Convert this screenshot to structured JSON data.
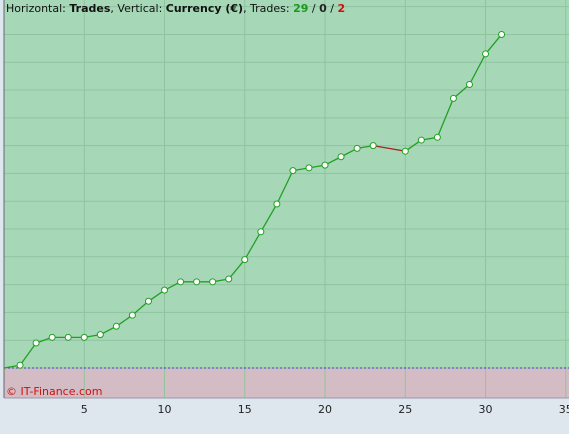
{
  "chart_data": {
    "type": "line",
    "header": [
      {
        "text": "Horizontal: "
      },
      {
        "text": "Trades",
        "bold": true
      },
      {
        "text": ", Vertical: "
      },
      {
        "text": "Currency (€)",
        "bold": true
      },
      {
        "text": ", Trades: "
      },
      {
        "text": "29",
        "bold": true,
        "color": "#1a9a1a"
      },
      {
        "text": " / "
      },
      {
        "text": "0",
        "bold": true,
        "color": "#222222"
      },
      {
        "text": " / "
      },
      {
        "text": "2",
        "bold": true,
        "color": "#cc1111"
      }
    ],
    "credit": "© IT-Finance.com",
    "x": [
      0,
      1,
      2,
      3,
      4,
      5,
      6,
      7,
      8,
      9,
      10,
      11,
      12,
      13,
      14,
      15,
      16,
      17,
      18,
      19,
      20,
      21,
      22,
      23,
      25,
      26,
      27,
      28,
      29,
      30,
      31
    ],
    "series": [
      {
        "color": "#22a022",
        "loss_color": "#aa2222",
        "values": [
          0,
          0.1,
          0.9,
          1.1,
          1.1,
          1.1,
          1.2,
          1.5,
          1.9,
          2.4,
          2.8,
          3.1,
          3.1,
          3.1,
          3.2,
          3.9,
          4.9,
          5.9,
          7.1,
          7.2,
          7.3,
          7.6,
          7.9,
          8.0,
          7.8,
          8.2,
          8.3,
          9.7,
          10.2,
          11.3,
          12.0
        ]
      }
    ],
    "xlim": [
      0,
      35.2
    ],
    "xticks": [
      5,
      10,
      15,
      20,
      25,
      30,
      35
    ],
    "ylim": [
      -1.08,
      13.24
    ],
    "ygrid": [
      0,
      1,
      2,
      3,
      4,
      5,
      6,
      7,
      8,
      9,
      10,
      11,
      12,
      13
    ],
    "profit_color": "#a6d8b8",
    "loss_area_color": "#d4bcc4",
    "grid": true
  }
}
